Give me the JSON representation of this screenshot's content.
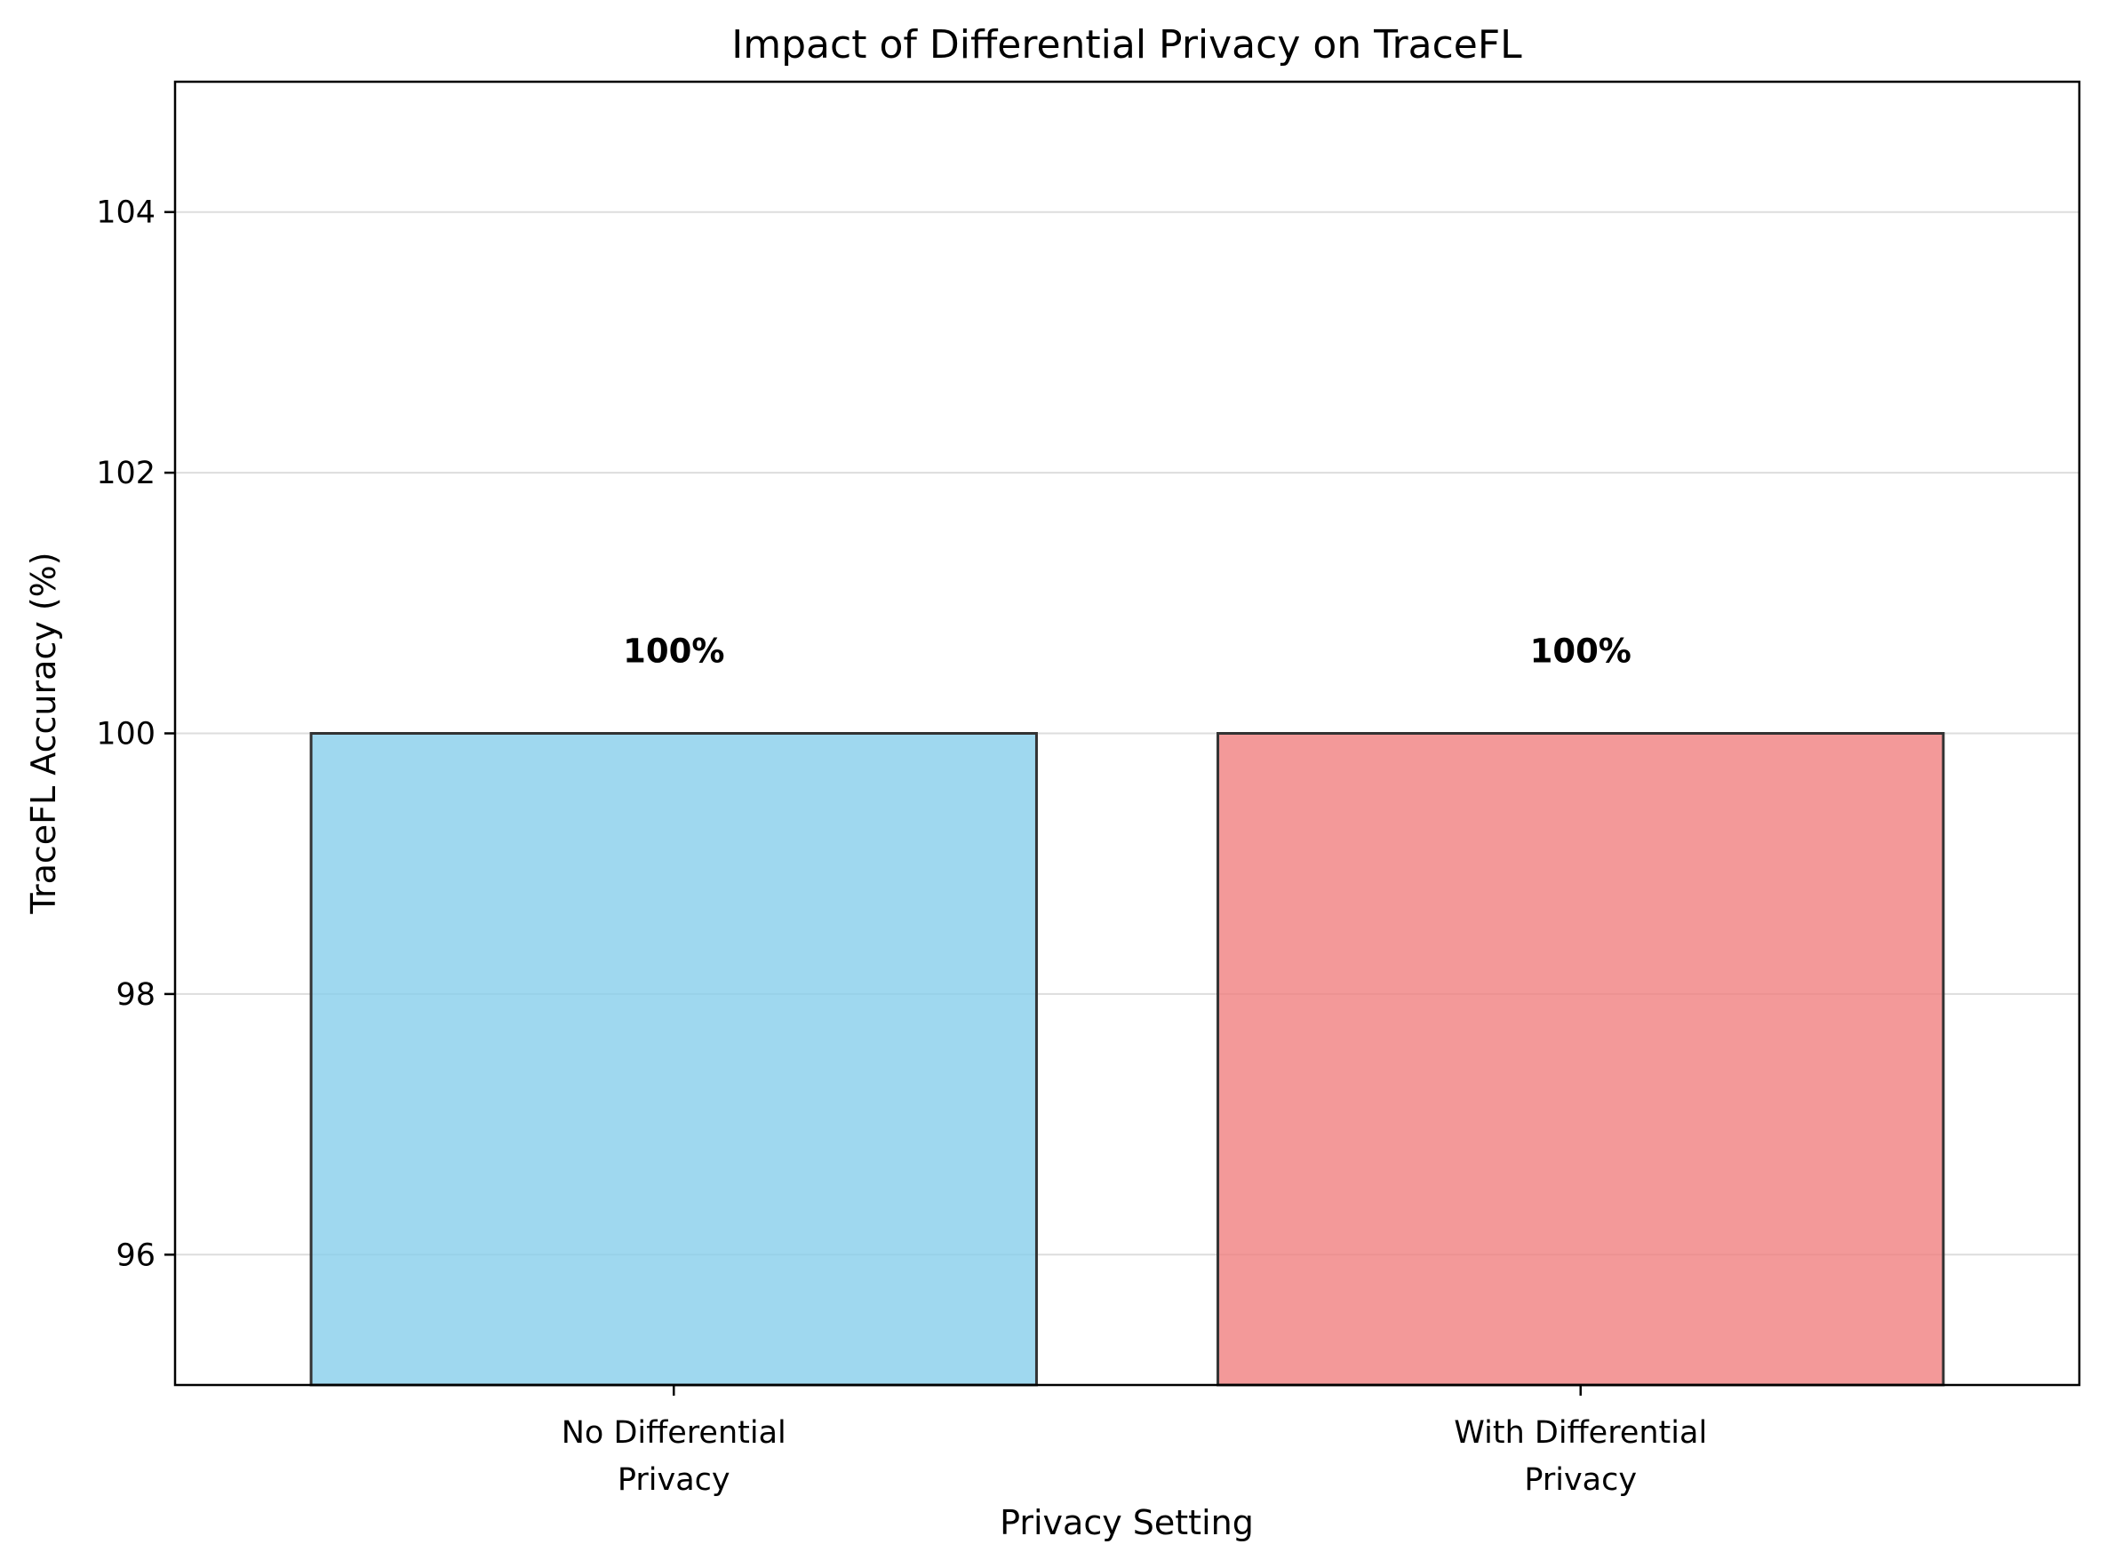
{
  "chart_data": {
    "type": "bar",
    "title": "Impact of Differential Privacy on TraceFL",
    "xlabel": "Privacy Setting",
    "ylabel": "TraceFL Accuracy (%)",
    "categories": [
      [
        "No Differential",
        "Privacy"
      ],
      [
        "With Differential",
        "Privacy"
      ]
    ],
    "values": [
      100,
      100
    ],
    "data_labels": [
      "100%",
      "100%"
    ],
    "ylim": [
      95,
      105
    ],
    "yticks": [
      96,
      98,
      100,
      102,
      104
    ],
    "colors": [
      "#87CEEB",
      "#F08080"
    ],
    "bar_edge_color": "#333333",
    "grid": "y-only",
    "legend": "none"
  }
}
